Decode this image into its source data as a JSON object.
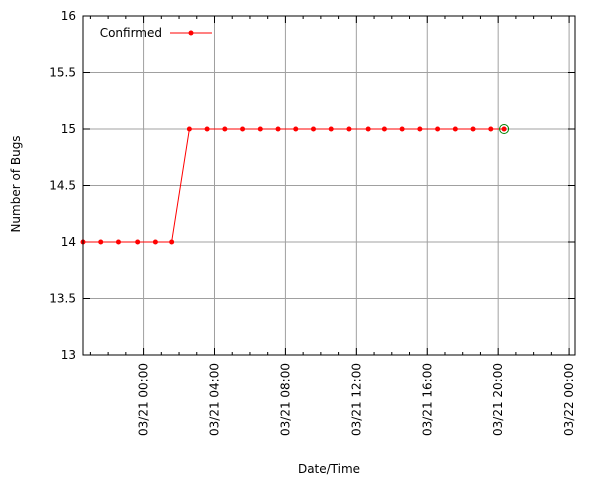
{
  "chart_data": {
    "type": "line",
    "xlabel": "Date/Time",
    "ylabel": "Number of Bugs",
    "ylim": [
      13,
      16
    ],
    "yticks": [
      13,
      13.5,
      14,
      14.5,
      15,
      15.5,
      16
    ],
    "ytick_labels": [
      "13",
      "13.5",
      "14",
      "14.5",
      "15",
      "15.5",
      "16"
    ],
    "xlim": [
      "03/20 20:35",
      "03/22 00:20"
    ],
    "xticks": [
      "03/21 00:00",
      "03/21 04:00",
      "03/21 08:00",
      "03/21 12:00",
      "03/21 16:00",
      "03/21 20:00",
      "03/22 00:00"
    ],
    "xtick_labels": [
      "03/21 00:00",
      "03/21 04:00",
      "03/21 08:00",
      "03/21 12:00",
      "03/21 16:00",
      "03/21 20:00",
      "03/22 00:00"
    ],
    "grid": true,
    "legend_position": "top-left",
    "series": [
      {
        "name": "Confirmed",
        "color": "#ff0000",
        "x": [
          "03/20 20:35",
          "03/20 21:35",
          "03/20 22:35",
          "03/20 23:40",
          "03/21 00:40",
          "03/21 01:35",
          "03/21 02:35",
          "03/21 03:35",
          "03/21 04:35",
          "03/21 05:35",
          "03/21 06:35",
          "03/21 07:35",
          "03/21 08:35",
          "03/21 09:35",
          "03/21 10:35",
          "03/21 11:35",
          "03/21 12:40",
          "03/21 13:35",
          "03/21 14:35",
          "03/21 15:35",
          "03/21 16:35",
          "03/21 17:35",
          "03/21 18:35",
          "03/21 19:35",
          "03/21 20:20"
        ],
        "values": [
          14,
          14,
          14,
          14,
          14,
          14,
          15,
          15,
          15,
          15,
          15,
          15,
          15,
          15,
          15,
          15,
          15,
          15,
          15,
          15,
          15,
          15,
          15,
          15,
          15
        ]
      }
    ],
    "highlight": {
      "x": "03/21 20:20",
      "value": 15,
      "ring_color": "#008000"
    }
  }
}
